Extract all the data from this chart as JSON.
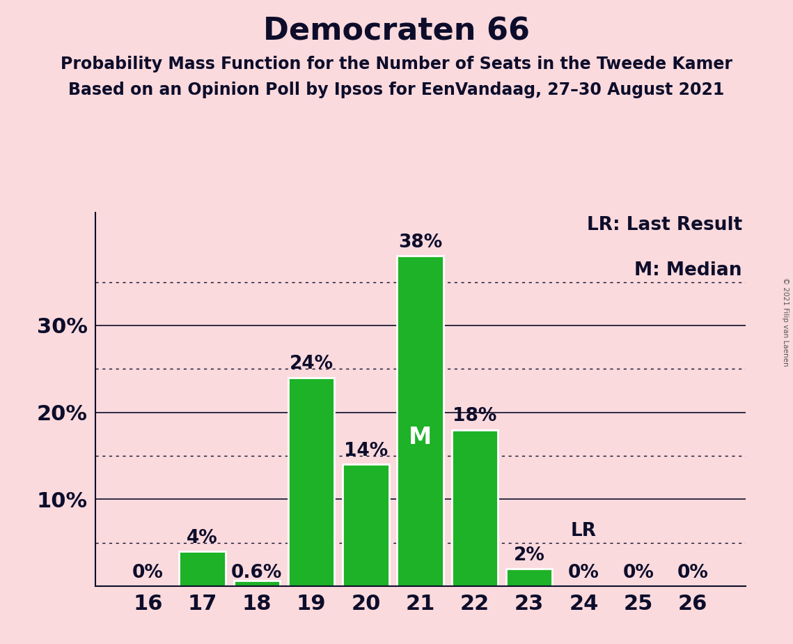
{
  "title": "Democraten 66",
  "subtitle1": "Probability Mass Function for the Number of Seats in the Tweede Kamer",
  "subtitle2": "Based on an Opinion Poll by Ipsos for EenVandaag, 27–30 August 2021",
  "copyright": "© 2021 Filip van Laenen",
  "categories": [
    16,
    17,
    18,
    19,
    20,
    21,
    22,
    23,
    24,
    25,
    26
  ],
  "values": [
    0.0,
    4.0,
    0.6,
    24.0,
    14.0,
    38.0,
    18.0,
    2.0,
    0.0,
    0.0,
    0.0
  ],
  "bar_labels": [
    "0%",
    "4%",
    "0.6%",
    "24%",
    "14%",
    "38%",
    "18%",
    "2%",
    "0%",
    "0%",
    "0%"
  ],
  "bar_color": "#1DB227",
  "background_color": "#FADADD",
  "text_color": "#0D0D2B",
  "median_seat": 21,
  "lr_seat": 24,
  "ylim": [
    0,
    43
  ],
  "solid_yticks": [
    10,
    20,
    30
  ],
  "dotted_yticks": [
    5,
    15,
    25,
    35
  ],
  "ytick_labels_vals": [
    10,
    20,
    30
  ],
  "ytick_labels_strs": [
    "10%",
    "20%",
    "30%"
  ],
  "legend_lr": "LR: Last Result",
  "legend_m": "M: Median",
  "title_fontsize": 32,
  "subtitle_fontsize": 17,
  "axis_label_fontsize": 22,
  "bar_label_fontsize": 19,
  "legend_fontsize": 19,
  "median_label_fontsize": 24
}
